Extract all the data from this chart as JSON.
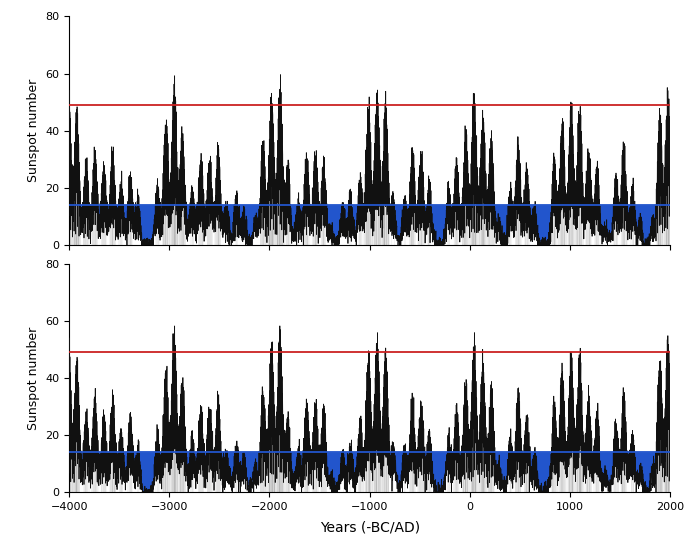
{
  "panel1_xrange": [
    -10000,
    -4000
  ],
  "panel2_xrange": [
    -4000,
    2000
  ],
  "ylim": [
    0,
    80
  ],
  "yticks": [
    0,
    20,
    40,
    60,
    80
  ],
  "red_line": 49,
  "blue_line": 14,
  "red_color": "#cc2222",
  "blue_color": "#2255cc",
  "gray_fill": "#b8b8b8",
  "line_color": "#111111",
  "ylabel": "Sunspot number",
  "xlabel": "Years (-BC/AD)",
  "bg_color": "#ffffff"
}
